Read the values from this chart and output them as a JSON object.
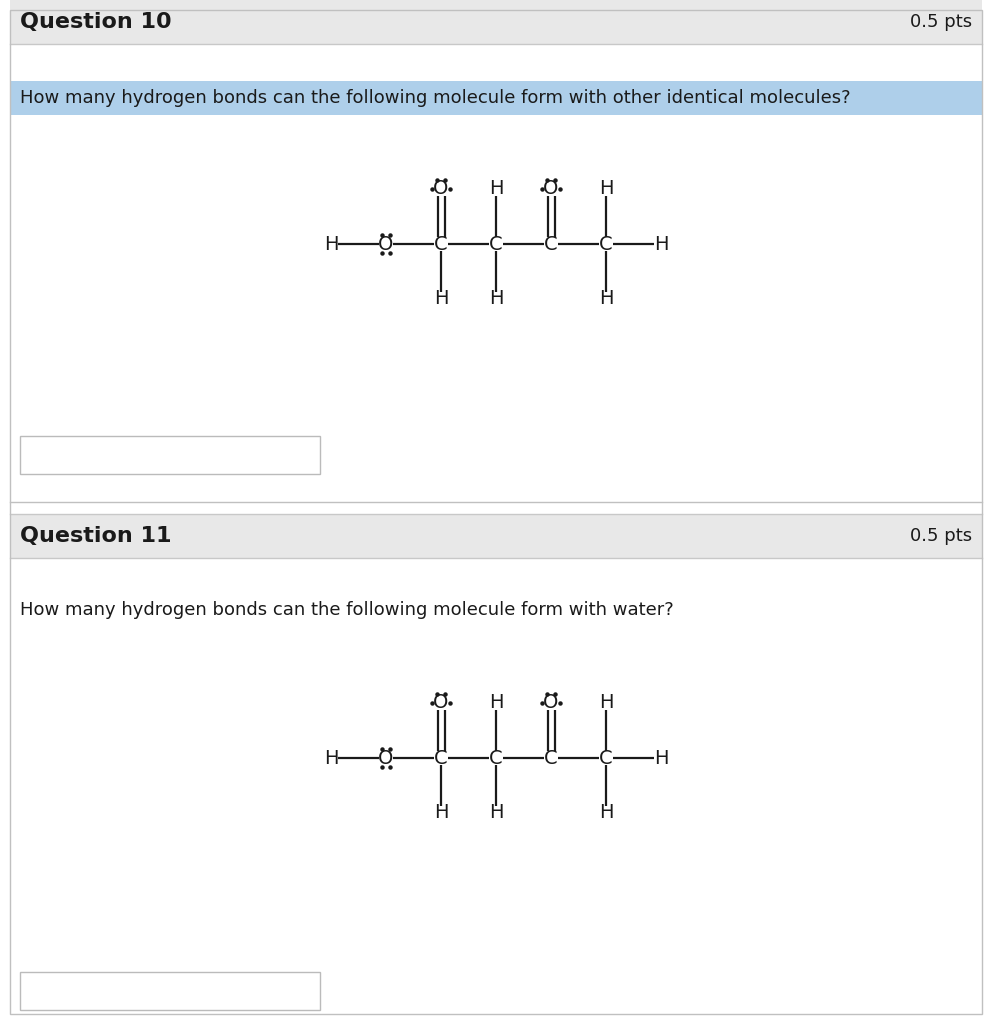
{
  "bg_color": "#ffffff",
  "header_bg": "#e8e8e8",
  "divider_color": "#c8c8c8",
  "question10_header": "Question 10",
  "question10_pts": "0.5 pts",
  "question10_text": "How many hydrogen bonds can the following molecule form with other identical molecules?",
  "question10_text_bg": "#aecfea",
  "question11_header": "Question 11",
  "question11_pts": "0.5 pts",
  "question11_text": "How many hydrogen bonds can the following molecule form with water?",
  "text_color": "#1a1a1a",
  "header_text_color": "#1a1a1a",
  "molecule_color": "#1a1a1a",
  "input_box_color": "#ffffff",
  "input_box_border": "#bbbbbb",
  "outer_border": "#c0c0c0"
}
